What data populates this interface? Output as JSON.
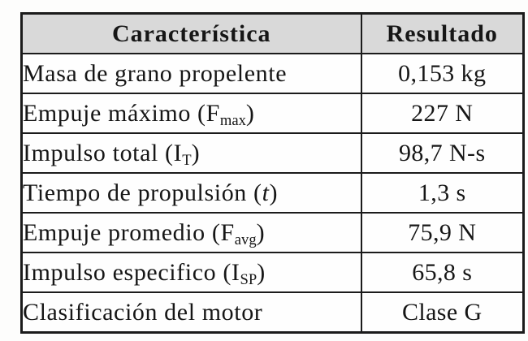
{
  "table": {
    "columns": [
      {
        "label": "Característica"
      },
      {
        "label": "Resultado"
      }
    ],
    "rows": [
      {
        "pre": "Masa de grano propelente",
        "sub": "",
        "italic": "",
        "post": "",
        "value": "0,153 kg"
      },
      {
        "pre": "Empuje máximo (F",
        "sub": "max",
        "italic": "",
        "post": ")",
        "value": "227 N"
      },
      {
        "pre": "Impulso total (I",
        "sub": "T",
        "italic": "",
        "post": ")",
        "value": "98,7 N-s"
      },
      {
        "pre": "Tiempo de propulsión (",
        "sub": "",
        "italic": "t",
        "post": ")",
        "value": "1,3 s"
      },
      {
        "pre": "Empuje promedio (F",
        "sub": "avg",
        "italic": "",
        "post": ")",
        "value": "75,9 N"
      },
      {
        "pre": "Impulso especifico (I",
        "sub": "SP",
        "italic": "",
        "post": ")",
        "value": "65,8 s"
      },
      {
        "pre": "Clasificación del motor",
        "sub": "",
        "italic": "",
        "post": "",
        "value": "Clase G"
      }
    ],
    "style": {
      "header_bg": "#d9d9d9",
      "border_color": "#1b1b1b",
      "text_color": "#161616"
    }
  }
}
